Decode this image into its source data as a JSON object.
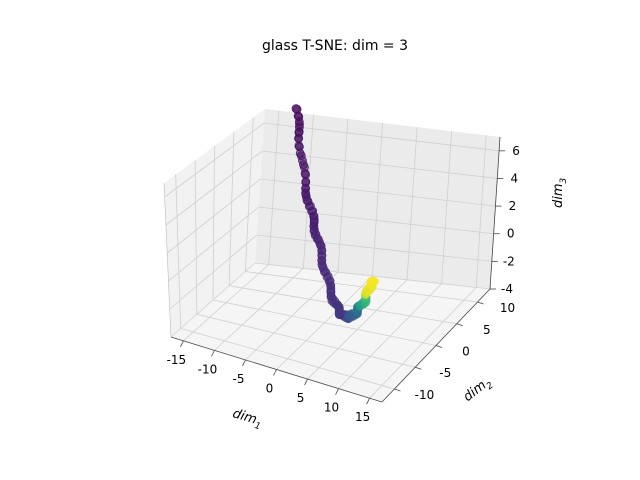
{
  "chart_data": {
    "type": "scatter",
    "projection": "3d",
    "title": "glass T-SNE: dim = 3",
    "xlabel": "dim",
    "xlabel_sub": "1",
    "ylabel": "dim",
    "ylabel_sub": "2",
    "zlabel": "dim",
    "zlabel_sub": "3",
    "xlim": [
      -17,
      17
    ],
    "ylim": [
      -13,
      13
    ],
    "zlim": [
      -4,
      7
    ],
    "x_ticks": [
      "-15",
      "-10",
      "-5",
      "0",
      "5",
      "10",
      "15"
    ],
    "y_ticks": [
      "-10",
      "-5",
      "0",
      "5",
      "10"
    ],
    "z_ticks": [
      "-4",
      "-2",
      "0",
      "2",
      "4",
      "6"
    ],
    "grid": true,
    "colormap": "viridis",
    "marker_alpha": 0.6,
    "colors": {
      "pane_left": "#f2f2f2",
      "pane_back": "#ebebeb",
      "pane_floor": "#f5f5f5",
      "grid": "#cfcfcf",
      "axis": "#444444"
    },
    "points_note_range_color": [
      0,
      1
    ]
  }
}
